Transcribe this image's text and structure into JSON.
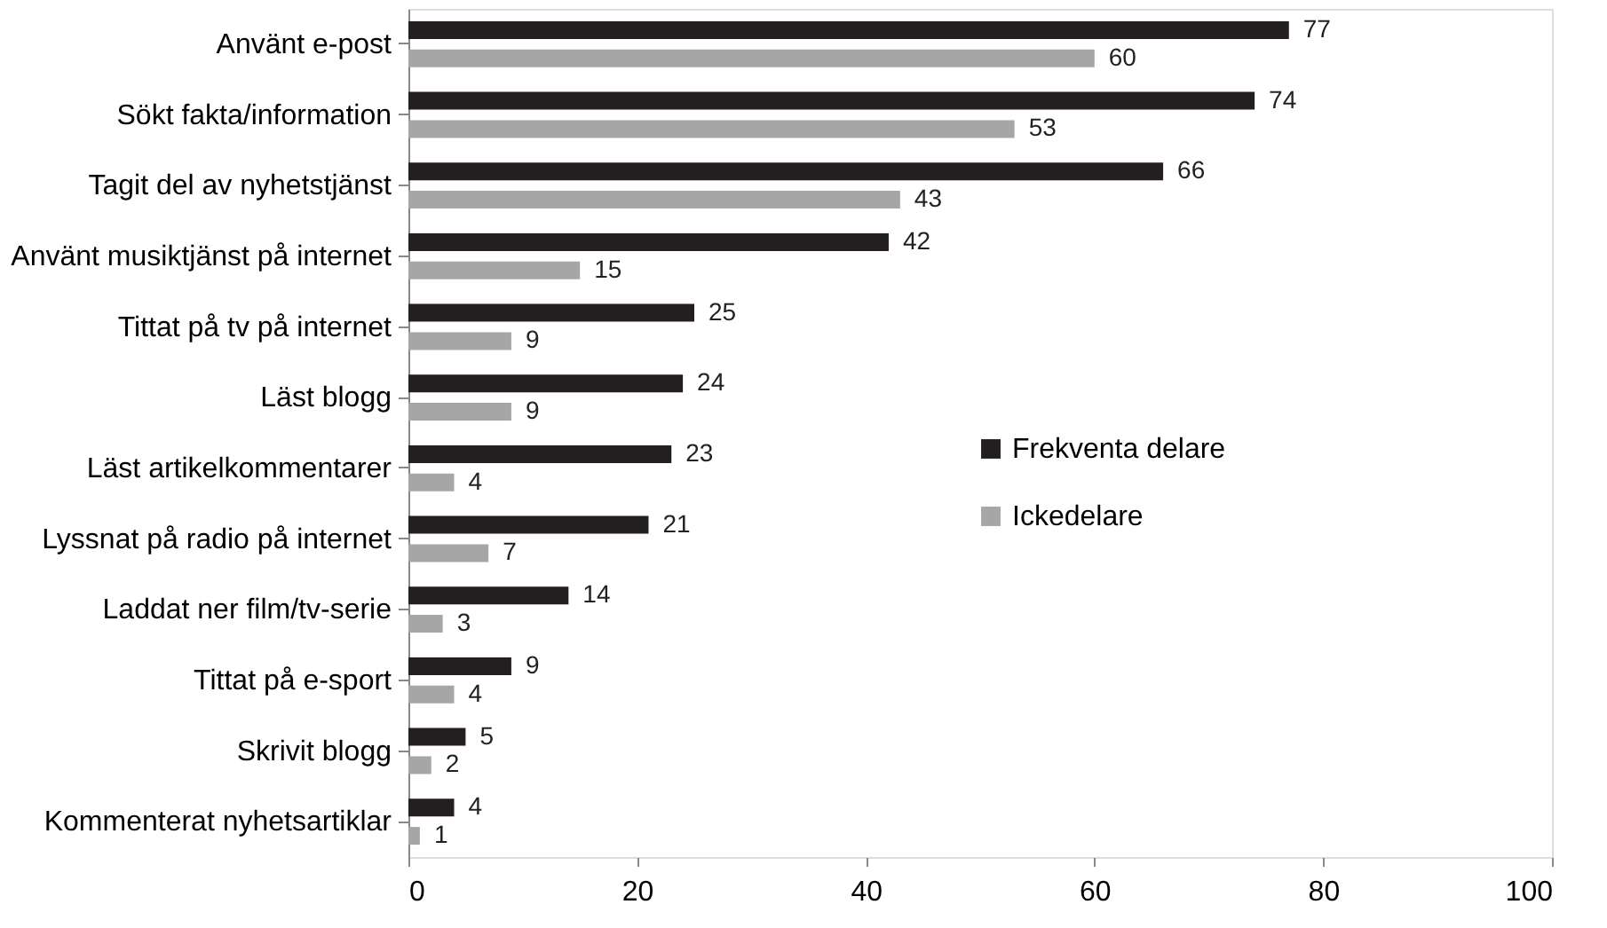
{
  "chart_data": {
    "type": "bar",
    "orientation": "horizontal",
    "categories": [
      "Använt e-post",
      "Sökt fakta/information",
      "Tagit del av nyhetstjänst",
      "Använt musiktjänst på internet",
      "Tittat på tv på internet",
      "Läst blogg",
      "Läst artikelkommentarer",
      "Lyssnat på radio på internet",
      "Laddat ner film/tv-serie",
      "Tittat på e-sport",
      "Skrivit blogg",
      "Kommenterat nyhetsartiklar"
    ],
    "series": [
      {
        "name": "Frekventa delare",
        "color": "#231f20",
        "values": [
          77,
          74,
          66,
          42,
          25,
          24,
          23,
          21,
          14,
          9,
          5,
          4
        ]
      },
      {
        "name": "Ickedelare",
        "color": "#a6a6a6",
        "values": [
          60,
          53,
          43,
          15,
          9,
          9,
          4,
          7,
          3,
          4,
          2,
          1
        ]
      }
    ],
    "xlim": [
      0,
      100
    ],
    "xticks": [
      0,
      20,
      40,
      60,
      80,
      100
    ],
    "grid": false,
    "legend": "right",
    "data_labels": true
  }
}
